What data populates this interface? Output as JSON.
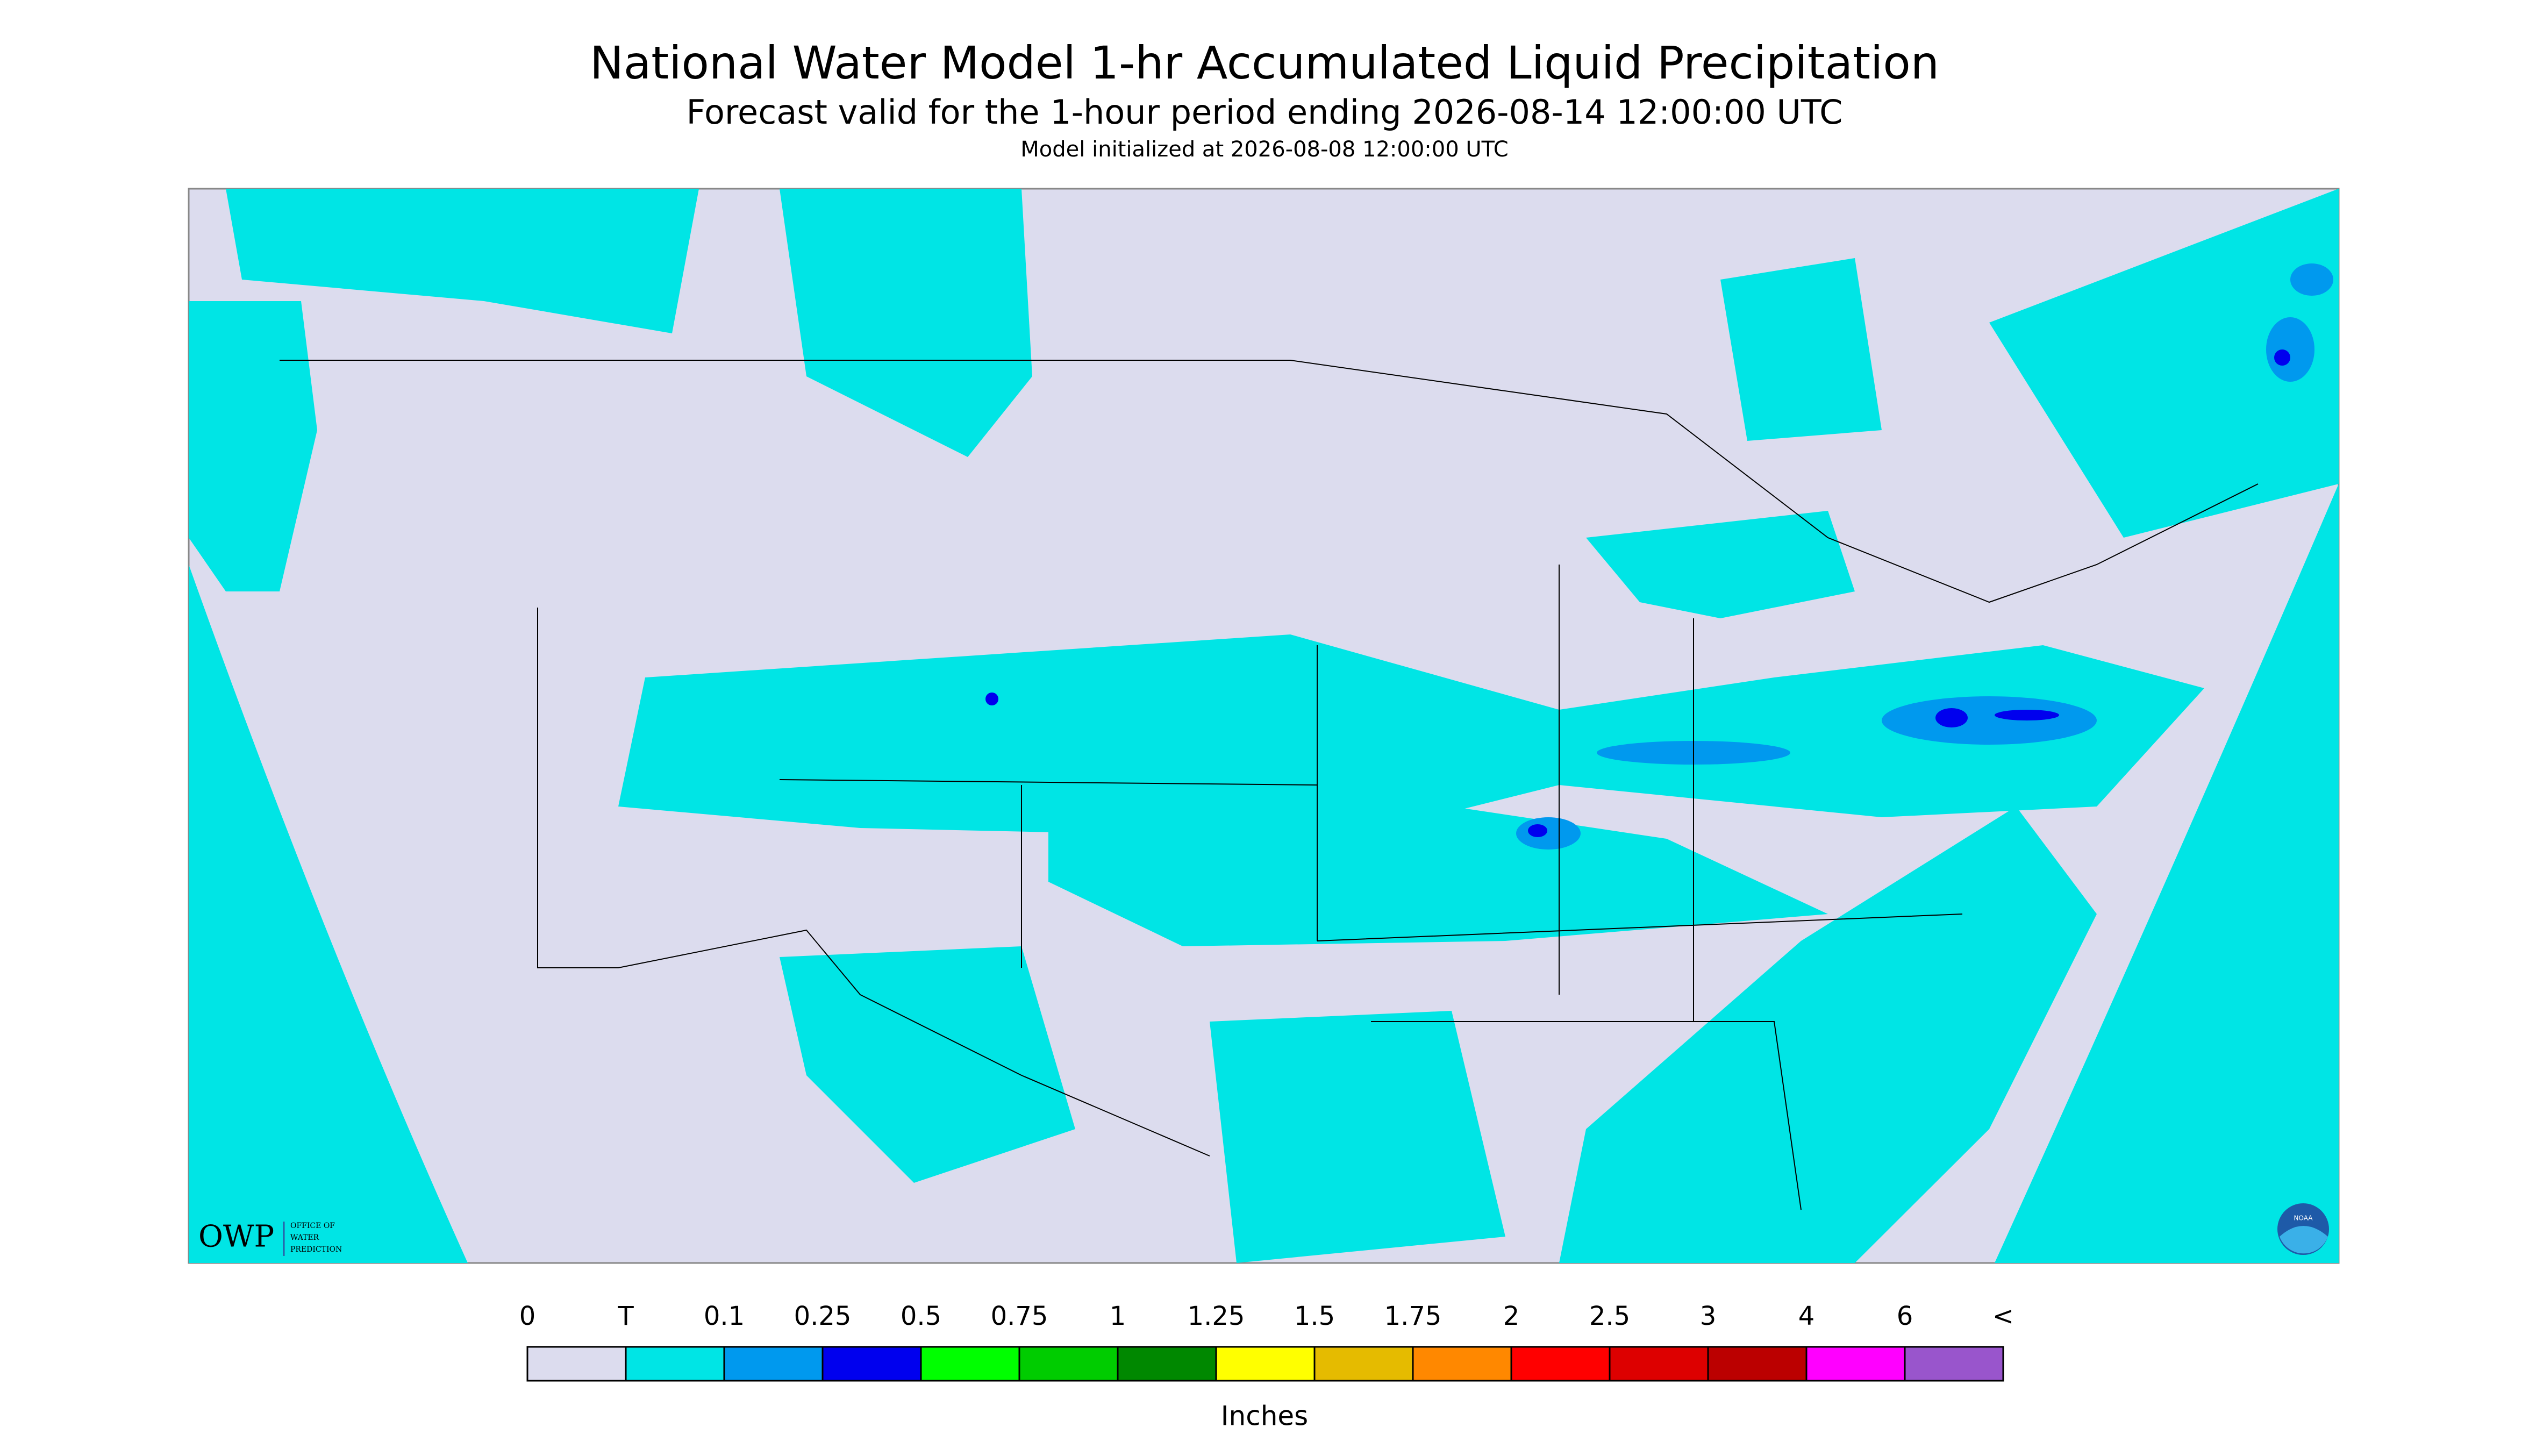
{
  "header": {
    "title": "National Water Model 1-hr Accumulated Liquid Precipitation",
    "subtitle": "Forecast valid for the 1-hour period ending 2026-08-14 12:00:00 UTC",
    "initialized": "Model initialized at 2026-08-08 12:00:00 UTC"
  },
  "logos": {
    "owp": "OWP",
    "owp_name": [
      "OFFICE OF",
      "WATER",
      "PREDICTION"
    ],
    "noaa": "NOAA"
  },
  "legend": {
    "labels": [
      "0",
      "T",
      "0.1",
      "0.25",
      "0.5",
      "0.75",
      "1",
      "1.25",
      "1.5",
      "1.75",
      "2",
      "2.5",
      "3",
      "4",
      "6",
      "<"
    ],
    "colors": [
      "#dcdcee",
      "#00e5e5",
      "#0099ee",
      "#0000ee",
      "#00ff00",
      "#00cc00",
      "#008800",
      "#ffff00",
      "#e5bb00",
      "#ff8800",
      "#ff0000",
      "#dd0000",
      "#bb0000",
      "#ff00ff",
      "#9955cc"
    ],
    "unit": "Inches"
  }
}
